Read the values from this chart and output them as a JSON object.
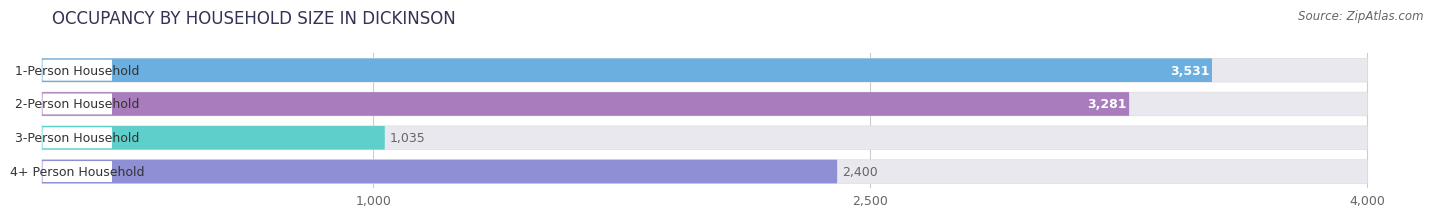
{
  "title": "OCCUPANCY BY HOUSEHOLD SIZE IN DICKINSON",
  "source": "Source: ZipAtlas.com",
  "categories": [
    "1-Person Household",
    "2-Person Household",
    "3-Person Household",
    "4+ Person Household"
  ],
  "values": [
    3531,
    3281,
    1035,
    2400
  ],
  "colors": [
    "#6aafe0",
    "#a87cbd",
    "#5ecfca",
    "#8e8fd4"
  ],
  "bar_label_colors": [
    "white",
    "white",
    "#777777",
    "#777777"
  ],
  "xlim_max": 4200,
  "data_max": 4000,
  "xticks": [
    1000,
    2500,
    4000
  ],
  "xtick_labels": [
    "1,000",
    "2,500",
    "4,000"
  ],
  "background_color": "#ffffff",
  "bar_bg_color": "#e8e8ee",
  "row_bg_color": "#f5f5f8",
  "title_fontsize": 12,
  "label_fontsize": 9,
  "value_fontsize": 9,
  "source_fontsize": 8.5
}
